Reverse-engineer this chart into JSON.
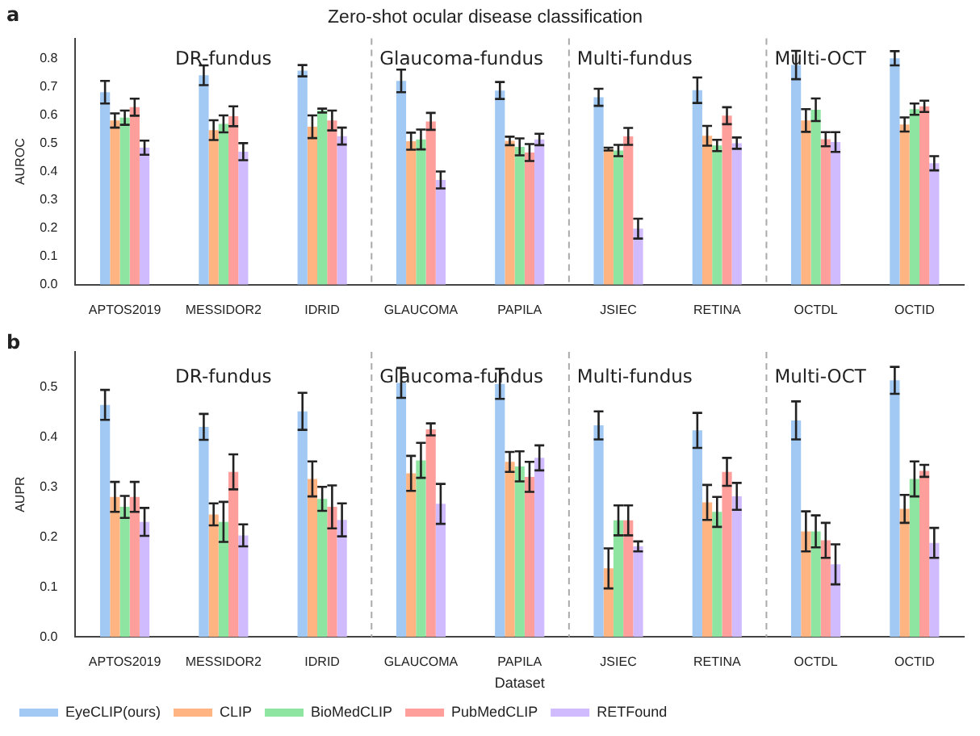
{
  "chart_data": [
    {
      "type": "bar",
      "title": "Zero-shot ocular disease classification",
      "ylabel": "AUROC",
      "annotations": [
        "a",
        "DR-fundus",
        "Glaucoma-fundus",
        "Multi-fundus",
        "Multi-OCT"
      ],
      "categories": [
        "APTOS2019",
        "MESSIDOR2",
        "IDRID",
        "GLAUCOMA",
        "PAPILA",
        "JSIEC",
        "RETINA",
        "OCTDL",
        "OCTID"
      ],
      "series": [
        {
          "color": "#a1c9f4",
          "values": [
            0.68,
            0.74,
            0.756,
            0.72,
            0.686,
            0.662,
            0.687,
            0.776,
            0.8
          ],
          "errors": [
            0.04,
            0.035,
            0.02,
            0.04,
            0.03,
            0.03,
            0.045,
            0.05,
            0.025
          ]
        },
        {
          "color": "#ffb482",
          "values": [
            0.58,
            0.546,
            0.558,
            0.507,
            0.508,
            0.479,
            0.526,
            0.58,
            0.566
          ],
          "errors": [
            0.025,
            0.035,
            0.04,
            0.03,
            0.015,
            0.005,
            0.035,
            0.04,
            0.025
          ]
        },
        {
          "color": "#8de5a1",
          "values": [
            0.59,
            0.568,
            0.615,
            0.513,
            0.487,
            0.474,
            0.492,
            0.618,
            0.62
          ],
          "errors": [
            0.025,
            0.03,
            0.007,
            0.035,
            0.03,
            0.02,
            0.02,
            0.04,
            0.02
          ]
        },
        {
          "color": "#ff9f9b",
          "values": [
            0.627,
            0.595,
            0.58,
            0.577,
            0.467,
            0.524,
            0.597,
            0.514,
            0.63
          ],
          "errors": [
            0.03,
            0.035,
            0.035,
            0.03,
            0.03,
            0.03,
            0.03,
            0.025,
            0.02
          ]
        },
        {
          "color": "#d0bbff",
          "values": [
            0.484,
            0.47,
            0.525,
            0.37,
            0.513,
            0.198,
            0.5,
            0.504,
            0.429
          ],
          "errors": [
            0.025,
            0.03,
            0.03,
            0.03,
            0.02,
            0.035,
            0.02,
            0.035,
            0.025
          ]
        }
      ],
      "ylim": [
        0,
        0.87
      ],
      "yticks": [
        {
          "value": 0,
          "label": "0.0"
        },
        0.1,
        0.2,
        0.3,
        0.4,
        0.5,
        0.6,
        0.7,
        0.8
      ],
      "grid": false,
      "legend": false
    },
    {
      "type": "bar",
      "xlabel": "Dataset",
      "ylabel": "AUPR",
      "annotations": [
        "b",
        "DR-fundus",
        "Glaucoma-fundus",
        "Multi-fundus",
        "Multi-OCT"
      ],
      "categories": [
        "APTOS2019",
        "MESSIDOR2",
        "IDRID",
        "GLAUCOMA",
        "PAPILA",
        "JSIEC",
        "RETINA",
        "OCTDL",
        "OCTID"
      ],
      "series": [
        {
          "name": "EyeCLIP(ours)",
          "color": "#a1c9f4",
          "values": [
            0.464,
            0.42,
            0.451,
            0.508,
            0.506,
            0.423,
            0.413,
            0.433,
            0.513
          ],
          "errors": [
            0.03,
            0.026,
            0.037,
            0.03,
            0.03,
            0.028,
            0.035,
            0.038,
            0.027
          ]
        },
        {
          "name": "CLIP",
          "color": "#ffb482",
          "values": [
            0.28,
            0.245,
            0.316,
            0.327,
            0.35,
            0.137,
            0.269,
            0.211,
            0.256
          ],
          "errors": [
            0.03,
            0.022,
            0.035,
            0.035,
            0.02,
            0.04,
            0.035,
            0.04,
            0.028
          ]
        },
        {
          "name": "BioMedCLIP",
          "color": "#8de5a1",
          "values": [
            0.26,
            0.23,
            0.276,
            0.353,
            0.341,
            0.233,
            0.25,
            0.211,
            0.316
          ],
          "errors": [
            0.022,
            0.04,
            0.024,
            0.035,
            0.03,
            0.03,
            0.03,
            0.032,
            0.035
          ]
        },
        {
          "name": "PubMedCLIP",
          "color": "#ff9f9b",
          "values": [
            0.28,
            0.33,
            0.26,
            0.415,
            0.32,
            0.233,
            0.33,
            0.193,
            0.332
          ],
          "errors": [
            0.03,
            0.035,
            0.043,
            0.012,
            0.03,
            0.03,
            0.028,
            0.035,
            0.012
          ]
        },
        {
          "name": "RETFound",
          "color": "#d0bbff",
          "values": [
            0.23,
            0.203,
            0.234,
            0.266,
            0.358,
            0.181,
            0.281,
            0.145,
            0.188
          ],
          "errors": [
            0.028,
            0.022,
            0.033,
            0.04,
            0.025,
            0.01,
            0.027,
            0.04,
            0.03
          ]
        }
      ],
      "ylim": [
        0,
        0.57
      ],
      "yticks": [
        {
          "value": 0,
          "label": "0.0"
        },
        0.1,
        0.2,
        0.3,
        0.4,
        0.5
      ],
      "grid": false,
      "legend": "bottom"
    }
  ]
}
